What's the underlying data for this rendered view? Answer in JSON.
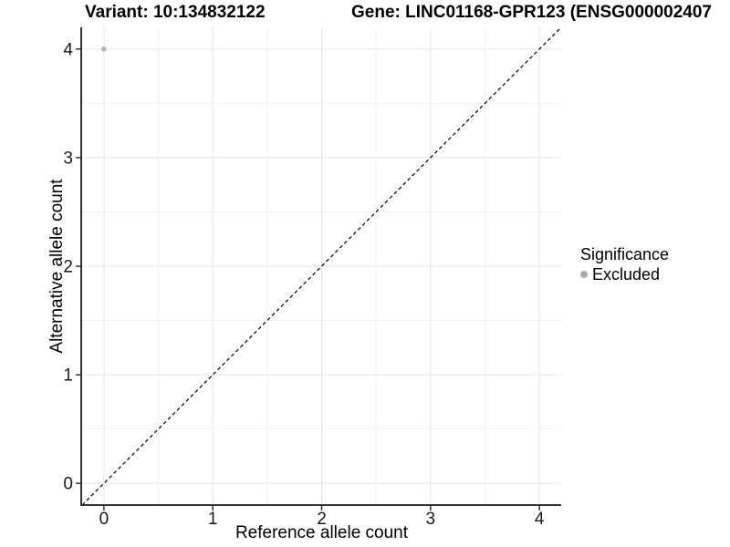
{
  "chart_data": {
    "type": "scatter",
    "titles": {
      "left": "Variant: 10:134832122",
      "right": "Gene: LINC01168-GPR123 (ENSG000002407"
    },
    "xlabel": "Reference allele count",
    "ylabel": "Alternative allele count",
    "xlim": [
      -0.2,
      4.2
    ],
    "ylim": [
      -0.2,
      4.2
    ],
    "x_ticks": [
      0,
      1,
      2,
      3,
      4
    ],
    "y_ticks": [
      0,
      1,
      2,
      3,
      4
    ],
    "x_minor_ticks": [
      0.5,
      1.5,
      2.5,
      3.5
    ],
    "y_minor_ticks": [
      0.5,
      1.5,
      2.5,
      3.5
    ],
    "grid": "major-and-minor",
    "points": [
      {
        "x": 0,
        "y": 4,
        "series": "Excluded"
      }
    ],
    "identity_line": {
      "slope": 1,
      "intercept": 0,
      "style": "dashed"
    },
    "legend": {
      "title": "Significance",
      "position": "right",
      "items": [
        {
          "label": "Excluded",
          "color": "#b5b5b5"
        }
      ]
    },
    "colors": {
      "background": "#ffffff",
      "point": "#b5b5b5",
      "legend_dot": "#ababab",
      "grid_major": "#e6e6e6",
      "grid_minor": "#f2f2f2",
      "axis_line": "#333333",
      "tick_mark": "#333333",
      "tick_label": "#1a1a1a",
      "dashed_line": "#000000"
    }
  }
}
